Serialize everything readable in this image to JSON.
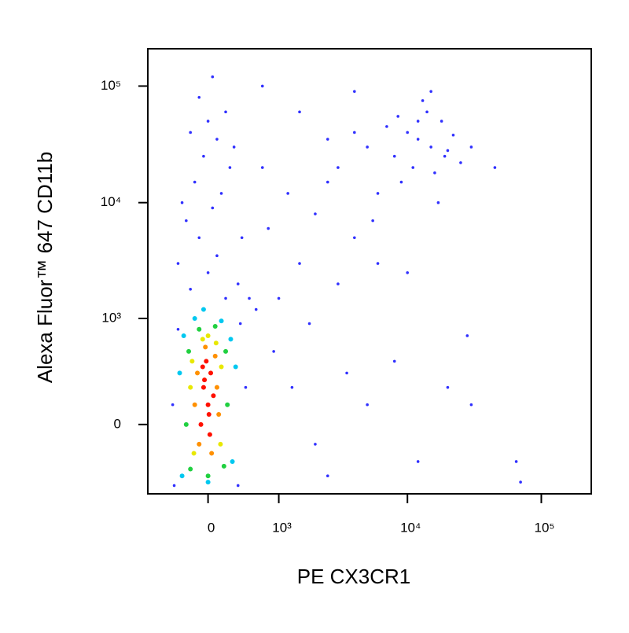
{
  "chart_data": {
    "type": "scatter",
    "x_label": "PE CX3CR1",
    "y_label": "Alexa Fluor™ 647 CD11b",
    "xscale": "arcsinh",
    "xcofactor": 650,
    "yscale": "arcsinh",
    "ycofactor": 250,
    "xlim": [
      -800,
      236000
    ],
    "ylim": [
      -460,
      209000
    ],
    "xticks": [
      0,
      {
        "value": 1000,
        "label": "10³"
      },
      {
        "value": 10000,
        "label": "10⁴"
      },
      {
        "value": 100000,
        "label": "10⁵"
      }
    ],
    "yticks": [
      0,
      {
        "value": 1000,
        "label": "10³"
      },
      {
        "value": 10000,
        "label": "10⁴"
      },
      {
        "value": 100000,
        "label": "10⁵"
      }
    ],
    "x": [
      -350,
      380,
      -400,
      350,
      450,
      -420,
      200,
      -200,
      0,
      100,
      -100,
      -250,
      50,
      150,
      -150,
      250,
      -50,
      100,
      -200,
      0,
      200,
      -100,
      50,
      300,
      -300,
      400,
      350,
      -350,
      500,
      600,
      3000,
      5000,
      8000,
      10000,
      12000,
      15000,
      18000,
      20000,
      14000,
      9000,
      7000,
      25000,
      16000,
      11000,
      13000,
      6000,
      4000,
      22000,
      30000,
      17000,
      45000,
      2500,
      12000,
      19000,
      8500,
      800,
      1200,
      1500,
      2000,
      3000,
      4000,
      6000,
      10000,
      1000,
      900,
      1300,
      2000,
      3500,
      5000,
      8000,
      12000,
      20000,
      28000,
      30000,
      65000,
      70000,
      2500,
      1800,
      700,
      700,
      1500,
      4000,
      15000,
      2500,
      5500,
      -280,
      260,
      -300,
      280,
      -150,
      150,
      -50,
      -330,
      320,
      0,
      -220,
      200,
      -250,
      220,
      -100,
      80,
      -200,
      180,
      0,
      -180,
      150,
      -160,
      140,
      0,
      -60,
      90,
      -200,
      -120,
      100,
      -100,
      80,
      -30,
      40,
      -150,
      120,
      -50,
      0,
      30,
      -80,
      20,
      -20,
      60,
      -40,
      10,
      -60
    ],
    "y": [
      800,
      900,
      -380,
      -380,
      200,
      100,
      1500,
      1800,
      2500,
      3500,
      5000,
      7000,
      9000,
      12000,
      15000,
      20000,
      25000,
      35000,
      40000,
      50000,
      60000,
      80000,
      120000,
      30000,
      10000,
      5000,
      2000,
      3000,
      1500,
      1200,
      20000,
      30000,
      25000,
      40000,
      35000,
      30000,
      50000,
      28000,
      60000,
      15000,
      45000,
      22000,
      18000,
      20000,
      75000,
      12000,
      40000,
      38000,
      30000,
      10000,
      20000,
      35000,
      50000,
      25000,
      55000,
      6000,
      12000,
      3000,
      8000,
      2000,
      5000,
      3000,
      2500,
      1500,
      500,
      200,
      -100,
      300,
      100,
      400,
      -200,
      200,
      700,
      100,
      -200,
      -350,
      -300,
      900,
      20000,
      100000,
      60000,
      90000,
      90000,
      15000,
      7000,
      700,
      650,
      -300,
      -200,
      1000,
      950,
      1200,
      300,
      350,
      -350,
      500,
      500,
      0,
      100,
      800,
      850,
      -250,
      -230,
      -300,
      400,
      350,
      -150,
      -100,
      700,
      650,
      600,
      200,
      300,
      200,
      -100,
      450,
      550,
      -150,
      100,
      50,
      200,
      100,
      300,
      0,
      -50,
      400,
      150,
      250,
      50,
      350
    ],
    "colors": [
      "#3030ff",
      "#3030ff",
      "#3030ff",
      "#3030ff",
      "#3030ff",
      "#3030ff",
      "#3030ff",
      "#3030ff",
      "#3030ff",
      "#3030ff",
      "#3030ff",
      "#3030ff",
      "#3030ff",
      "#3030ff",
      "#3030ff",
      "#3030ff",
      "#3030ff",
      "#3030ff",
      "#3030ff",
      "#3030ff",
      "#3030ff",
      "#3030ff",
      "#3030ff",
      "#3030ff",
      "#3030ff",
      "#3030ff",
      "#3030ff",
      "#3030ff",
      "#3030ff",
      "#3030ff",
      "#3030ff",
      "#3030ff",
      "#3030ff",
      "#3030ff",
      "#3030ff",
      "#3030ff",
      "#3030ff",
      "#3030ff",
      "#3030ff",
      "#3030ff",
      "#3030ff",
      "#3030ff",
      "#3030ff",
      "#3030ff",
      "#3030ff",
      "#3030ff",
      "#3030ff",
      "#3030ff",
      "#3030ff",
      "#3030ff",
      "#3030ff",
      "#3030ff",
      "#3030ff",
      "#3030ff",
      "#3030ff",
      "#3030ff",
      "#3030ff",
      "#3030ff",
      "#3030ff",
      "#3030ff",
      "#3030ff",
      "#3030ff",
      "#3030ff",
      "#3030ff",
      "#3030ff",
      "#3030ff",
      "#3030ff",
      "#3030ff",
      "#3030ff",
      "#3030ff",
      "#3030ff",
      "#3030ff",
      "#3030ff",
      "#3030ff",
      "#3030ff",
      "#3030ff",
      "#3030ff",
      "#3030ff",
      "#3030ff",
      "#3030ff",
      "#3030ff",
      "#3030ff",
      "#3030ff",
      "#3030ff",
      "#3030ff",
      "#00c8f0",
      "#00c8f0",
      "#00c8f0",
      "#00c8f0",
      "#00c8f0",
      "#00c8f0",
      "#00c8f0",
      "#00c8f0",
      "#00c8f0",
      "#00c8f0",
      "#20d040",
      "#20d040",
      "#20d040",
      "#20d040",
      "#20d040",
      "#20d040",
      "#20d040",
      "#20d040",
      "#20d040",
      "#e8e800",
      "#e8e800",
      "#e8e800",
      "#e8e800",
      "#e8e800",
      "#e8e800",
      "#e8e800",
      "#e8e800",
      "#ff9000",
      "#ff9000",
      "#ff9000",
      "#ff9000",
      "#ff9000",
      "#ff9000",
      "#ff9000",
      "#ff9000",
      "#ff1000",
      "#ff1000",
      "#ff1000",
      "#ff1000",
      "#ff1000",
      "#ff1000",
      "#ff1000",
      "#ff1000",
      "#ff1000",
      "#ff1000"
    ]
  }
}
